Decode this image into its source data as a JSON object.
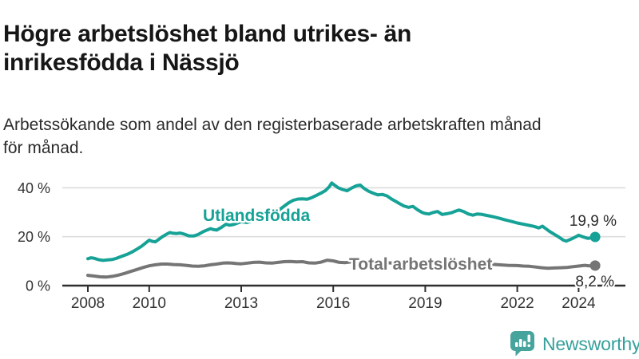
{
  "header": {
    "title_line1": "Högre arbetslöshet bland utrikes- än",
    "title_line2": "inrikesfödda i Nässjö",
    "subtitle_line1": "Arbetssökande som andel av den registerbaserade arbetskraften månad",
    "subtitle_line2": "för månad."
  },
  "chart_data": {
    "type": "line",
    "title": "Högre arbetslöshet bland utrikes- än inrikesfödda i Nässjö",
    "subtitle": "Arbetssökande som andel av den registerbaserade arbetskraften månad för månad.",
    "unit": "%",
    "grid": true,
    "legend_position": "inline-labels",
    "x_axis": {
      "range": [
        2008,
        2024.6
      ],
      "ticks": [
        {
          "year": 2008,
          "label": "2008"
        },
        {
          "year": 2010,
          "label": "2010"
        },
        {
          "year": 2013,
          "label": "2013"
        },
        {
          "year": 2016,
          "label": "2016"
        },
        {
          "year": 2019,
          "label": "2019"
        },
        {
          "year": 2022,
          "label": "2022"
        },
        {
          "year": 2024,
          "label": "2024"
        }
      ]
    },
    "y_axis": {
      "range": [
        0,
        45
      ],
      "ticks": [
        {
          "value": 0,
          "label": "0 %"
        },
        {
          "value": 20,
          "label": "20 %"
        },
        {
          "value": 40,
          "label": "40 %"
        }
      ]
    },
    "colors": {
      "teal": "#16a296",
      "gray": "#757575",
      "axis": "#2e2e2e",
      "axis_text": "#333333",
      "grid": "#dcdcdc",
      "annotation": "#2b2b2b",
      "title_text": "#161616",
      "subtitle_text": "#2b2b2b",
      "logo_teal": "#47a49d",
      "logo_text": "#35a09a",
      "background": "#ffffff"
    },
    "series": [
      {
        "id": "utlandsfodda",
        "name": "Utlandsfödda",
        "color": "#16a296",
        "end_value": 19.9,
        "end_label": "19,9 %",
        "points": [
          [
            2008.0,
            11.0
          ],
          [
            2008.1,
            11.4
          ],
          [
            2008.2,
            11.2
          ],
          [
            2008.35,
            10.6
          ],
          [
            2008.5,
            10.3
          ],
          [
            2008.65,
            10.5
          ],
          [
            2008.8,
            10.7
          ],
          [
            2008.92,
            11.1
          ],
          [
            2009.0,
            11.5
          ],
          [
            2009.15,
            12.2
          ],
          [
            2009.3,
            12.9
          ],
          [
            2009.45,
            13.8
          ],
          [
            2009.6,
            14.9
          ],
          [
            2009.75,
            16.1
          ],
          [
            2009.9,
            17.6
          ],
          [
            2010.0,
            18.6
          ],
          [
            2010.1,
            18.1
          ],
          [
            2010.2,
            17.9
          ],
          [
            2010.3,
            18.8
          ],
          [
            2010.42,
            19.9
          ],
          [
            2010.55,
            20.9
          ],
          [
            2010.67,
            21.7
          ],
          [
            2010.78,
            21.4
          ],
          [
            2010.9,
            21.3
          ],
          [
            2011.0,
            21.5
          ],
          [
            2011.15,
            21.0
          ],
          [
            2011.3,
            20.3
          ],
          [
            2011.45,
            20.3
          ],
          [
            2011.6,
            20.9
          ],
          [
            2011.75,
            22.0
          ],
          [
            2011.9,
            22.8
          ],
          [
            2012.0,
            23.3
          ],
          [
            2012.1,
            22.9
          ],
          [
            2012.2,
            22.7
          ],
          [
            2012.35,
            23.8
          ],
          [
            2012.5,
            25.1
          ],
          [
            2012.62,
            24.7
          ],
          [
            2012.75,
            25.0
          ],
          [
            2012.9,
            25.7
          ],
          [
            2013.0,
            26.1
          ],
          [
            2013.2,
            25.8
          ],
          [
            2013.4,
            26.6
          ],
          [
            2013.6,
            27.4
          ],
          [
            2013.8,
            28.2
          ],
          [
            2014.0,
            29.2
          ],
          [
            2014.2,
            30.6
          ],
          [
            2014.4,
            32.5
          ],
          [
            2014.55,
            33.9
          ],
          [
            2014.7,
            34.9
          ],
          [
            2014.85,
            35.4
          ],
          [
            2015.0,
            35.5
          ],
          [
            2015.15,
            35.3
          ],
          [
            2015.3,
            36.0
          ],
          [
            2015.45,
            36.9
          ],
          [
            2015.6,
            37.8
          ],
          [
            2015.75,
            38.9
          ],
          [
            2015.88,
            40.6
          ],
          [
            2015.95,
            42.0
          ],
          [
            2016.05,
            41.0
          ],
          [
            2016.15,
            40.1
          ],
          [
            2016.3,
            39.3
          ],
          [
            2016.45,
            38.8
          ],
          [
            2016.6,
            39.9
          ],
          [
            2016.75,
            40.8
          ],
          [
            2016.88,
            41.1
          ],
          [
            2017.0,
            39.8
          ],
          [
            2017.15,
            38.6
          ],
          [
            2017.3,
            37.8
          ],
          [
            2017.45,
            37.1
          ],
          [
            2017.6,
            37.3
          ],
          [
            2017.75,
            36.7
          ],
          [
            2017.9,
            35.4
          ],
          [
            2018.0,
            34.7
          ],
          [
            2018.15,
            33.6
          ],
          [
            2018.3,
            32.6
          ],
          [
            2018.45,
            32.0
          ],
          [
            2018.6,
            32.4
          ],
          [
            2018.75,
            31.0
          ],
          [
            2018.9,
            29.9
          ],
          [
            2019.0,
            29.5
          ],
          [
            2019.12,
            29.3
          ],
          [
            2019.25,
            29.9
          ],
          [
            2019.4,
            30.3
          ],
          [
            2019.55,
            29.1
          ],
          [
            2019.7,
            29.4
          ],
          [
            2019.85,
            29.8
          ],
          [
            2020.0,
            30.5
          ],
          [
            2020.1,
            30.9
          ],
          [
            2020.25,
            30.3
          ],
          [
            2020.4,
            29.3
          ],
          [
            2020.55,
            28.8
          ],
          [
            2020.7,
            29.3
          ],
          [
            2020.85,
            29.1
          ],
          [
            2021.0,
            28.7
          ],
          [
            2021.2,
            28.2
          ],
          [
            2021.4,
            27.6
          ],
          [
            2021.6,
            26.9
          ],
          [
            2021.8,
            26.3
          ],
          [
            2022.0,
            25.6
          ],
          [
            2022.2,
            25.1
          ],
          [
            2022.4,
            24.6
          ],
          [
            2022.55,
            24.2
          ],
          [
            2022.7,
            23.6
          ],
          [
            2022.82,
            24.3
          ],
          [
            2022.92,
            23.4
          ],
          [
            2023.05,
            22.2
          ],
          [
            2023.2,
            21.0
          ],
          [
            2023.35,
            19.9
          ],
          [
            2023.5,
            18.6
          ],
          [
            2023.6,
            18.2
          ],
          [
            2023.75,
            19.0
          ],
          [
            2023.9,
            19.9
          ],
          [
            2024.0,
            20.6
          ],
          [
            2024.15,
            19.9
          ],
          [
            2024.3,
            19.3
          ],
          [
            2024.42,
            19.5
          ],
          [
            2024.54,
            19.9
          ]
        ]
      },
      {
        "id": "total",
        "name": "Total arbetslöshet",
        "color": "#757575",
        "end_value": 8.2,
        "end_label": "8,2 %",
        "points": [
          [
            2008.0,
            4.2
          ],
          [
            2008.2,
            3.9
          ],
          [
            2008.4,
            3.6
          ],
          [
            2008.6,
            3.5
          ],
          [
            2008.8,
            3.8
          ],
          [
            2009.0,
            4.3
          ],
          [
            2009.2,
            5.0
          ],
          [
            2009.4,
            5.8
          ],
          [
            2009.6,
            6.6
          ],
          [
            2009.8,
            7.4
          ],
          [
            2010.0,
            8.1
          ],
          [
            2010.2,
            8.5
          ],
          [
            2010.4,
            8.8
          ],
          [
            2010.6,
            8.8
          ],
          [
            2010.8,
            8.6
          ],
          [
            2011.0,
            8.5
          ],
          [
            2011.2,
            8.3
          ],
          [
            2011.4,
            8.0
          ],
          [
            2011.6,
            7.9
          ],
          [
            2011.8,
            8.1
          ],
          [
            2012.0,
            8.5
          ],
          [
            2012.2,
            8.8
          ],
          [
            2012.4,
            9.2
          ],
          [
            2012.55,
            9.3
          ],
          [
            2012.7,
            9.2
          ],
          [
            2012.85,
            9.0
          ],
          [
            2013.0,
            8.9
          ],
          [
            2013.2,
            9.2
          ],
          [
            2013.4,
            9.5
          ],
          [
            2013.6,
            9.6
          ],
          [
            2013.8,
            9.3
          ],
          [
            2014.0,
            9.2
          ],
          [
            2014.2,
            9.5
          ],
          [
            2014.4,
            9.8
          ],
          [
            2014.6,
            9.9
          ],
          [
            2014.8,
            9.7
          ],
          [
            2015.0,
            9.8
          ],
          [
            2015.2,
            9.3
          ],
          [
            2015.4,
            9.2
          ],
          [
            2015.6,
            9.6
          ],
          [
            2015.8,
            10.4
          ],
          [
            2016.0,
            10.1
          ],
          [
            2016.2,
            9.5
          ],
          [
            2016.4,
            9.4
          ],
          [
            2016.6,
            9.7
          ],
          [
            2016.8,
            9.9
          ],
          [
            2017.0,
            9.8
          ],
          [
            2017.3,
            9.6
          ],
          [
            2017.6,
            9.4
          ],
          [
            2018.0,
            9.2
          ],
          [
            2018.4,
            9.0
          ],
          [
            2018.8,
            8.8
          ],
          [
            2019.0,
            8.7
          ],
          [
            2019.4,
            8.6
          ],
          [
            2019.8,
            8.7
          ],
          [
            2020.0,
            8.9
          ],
          [
            2020.3,
            9.3
          ],
          [
            2020.6,
            9.2
          ],
          [
            2021.0,
            8.9
          ],
          [
            2021.4,
            8.5
          ],
          [
            2021.7,
            8.3
          ],
          [
            2022.0,
            8.2
          ],
          [
            2022.2,
            8.0
          ],
          [
            2022.4,
            7.9
          ],
          [
            2022.6,
            7.6
          ],
          [
            2022.8,
            7.3
          ],
          [
            2023.0,
            7.1
          ],
          [
            2023.2,
            7.2
          ],
          [
            2023.4,
            7.3
          ],
          [
            2023.6,
            7.4
          ],
          [
            2023.8,
            7.7
          ],
          [
            2024.0,
            8.0
          ],
          [
            2024.2,
            8.3
          ],
          [
            2024.35,
            8.1
          ],
          [
            2024.54,
            8.2
          ]
        ]
      }
    ]
  },
  "footer": {
    "brand": "Newsworthy",
    "logo_icon": "bar-chart-exclamation-speech-bubble"
  }
}
